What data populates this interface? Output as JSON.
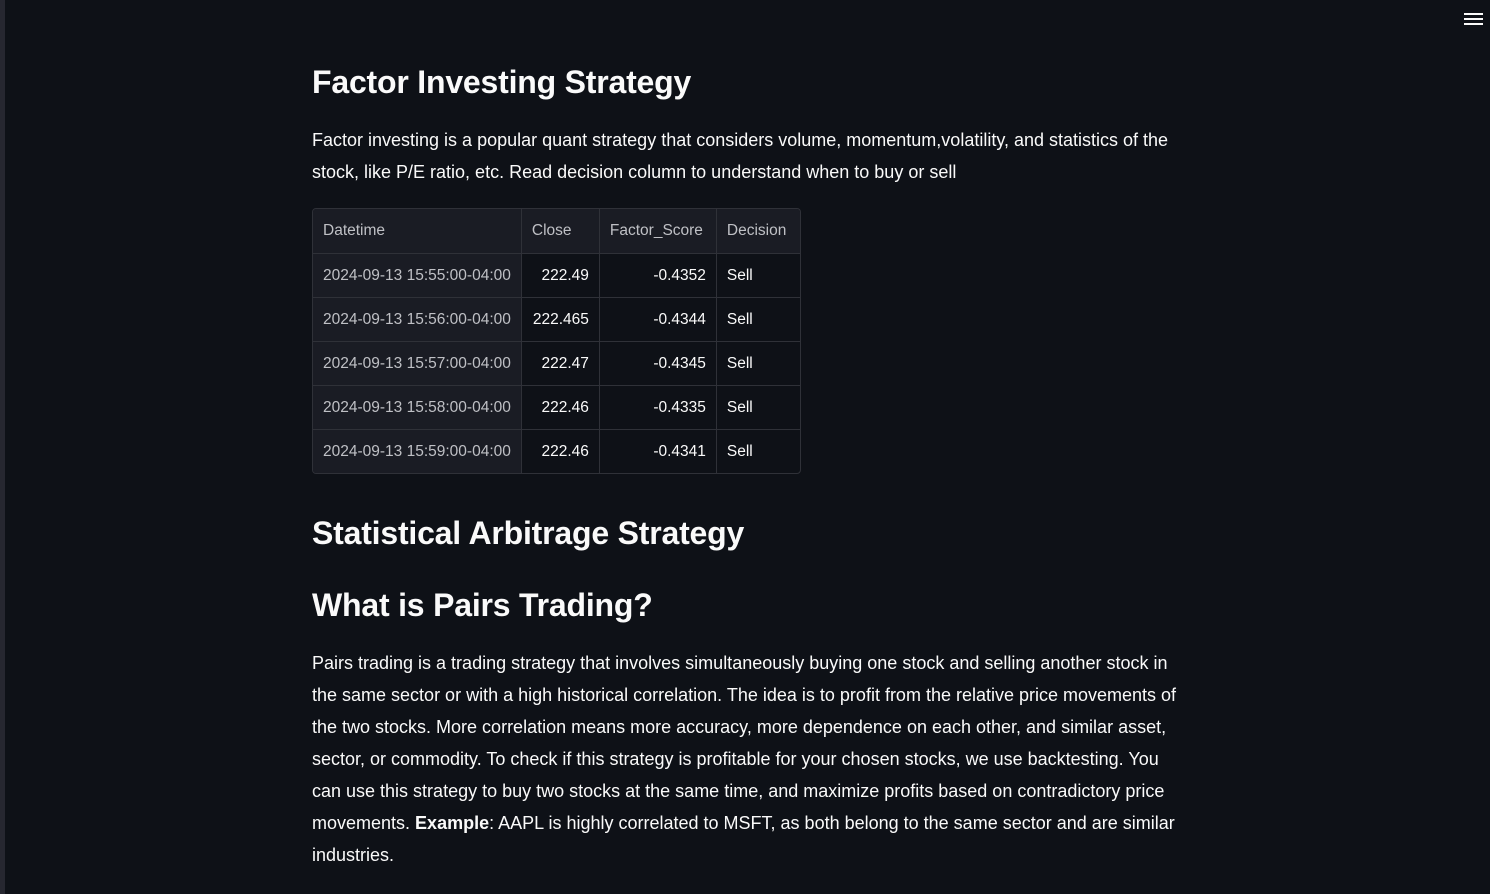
{
  "header": {
    "menu_icon": "hamburger-menu-icon"
  },
  "factor": {
    "title": "Factor Investing Strategy",
    "description": "Factor investing is a popular quant strategy that considers volume, momentum,volatility, and statistics of the stock, like P/E ratio, etc. Read decision column to understand when to buy or sell",
    "table": {
      "columns": [
        "Datetime",
        "Close",
        "Factor_Score",
        "Decision"
      ],
      "rows": [
        {
          "datetime": "2024-09-13 15:55:00-04:00",
          "close": "222.49",
          "factor_score": "-0.4352",
          "decision": "Sell"
        },
        {
          "datetime": "2024-09-13 15:56:00-04:00",
          "close": "222.465",
          "factor_score": "-0.4344",
          "decision": "Sell"
        },
        {
          "datetime": "2024-09-13 15:57:00-04:00",
          "close": "222.47",
          "factor_score": "-0.4345",
          "decision": "Sell"
        },
        {
          "datetime": "2024-09-13 15:58:00-04:00",
          "close": "222.46",
          "factor_score": "-0.4335",
          "decision": "Sell"
        },
        {
          "datetime": "2024-09-13 15:59:00-04:00",
          "close": "222.46",
          "factor_score": "-0.4341",
          "decision": "Sell"
        }
      ]
    }
  },
  "stat_arb": {
    "title": "Statistical Arbitrage Strategy"
  },
  "pairs": {
    "title": "What is Pairs Trading?",
    "description_part1": "Pairs trading is a trading strategy that involves simultaneously buying one stock and selling another stock in the same sector or with a high historical correlation. The idea is to profit from the relative price movements of the two stocks. More correlation means more accuracy, more dependence on each other, and similar asset, sector, or commodity. To check if this strategy is profitable for your chosen stocks, we use backtesting. You can use this strategy to buy two stocks at the same time, and maximize profits based on contradictory price movements. ",
    "example_label": "Example",
    "description_part2": ": AAPL is highly correlated to MSFT, as both belong to the same sector and are similar industries."
  }
}
